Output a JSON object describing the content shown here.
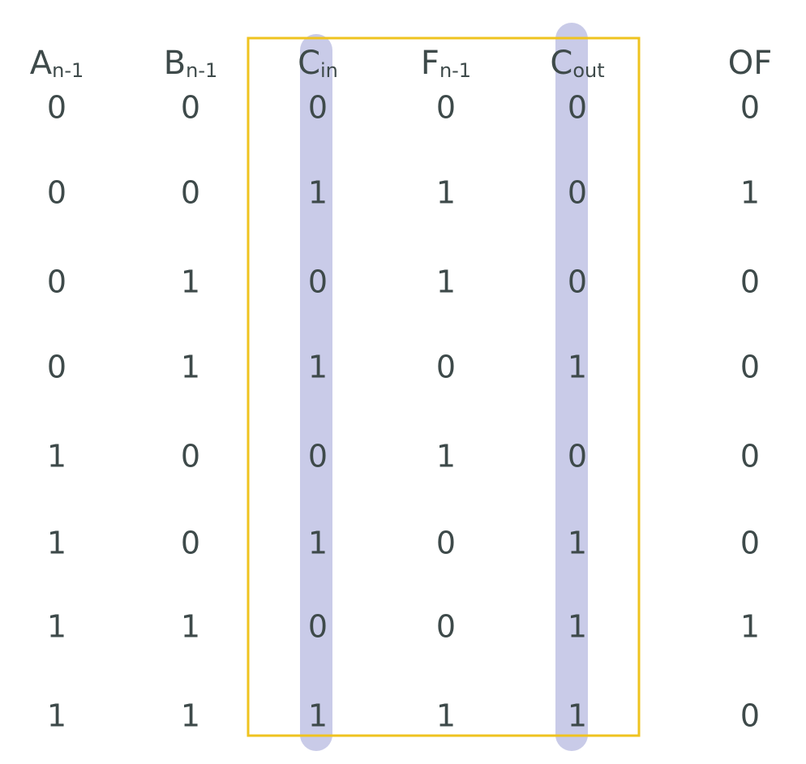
{
  "table": {
    "header": [
      {
        "main": "A",
        "sub": "n-1"
      },
      {
        "main": "B",
        "sub": "n-1"
      },
      {
        "main": "C",
        "sub": "in"
      },
      {
        "main": "F",
        "sub": "n-1"
      },
      {
        "main": "C",
        "sub": "out"
      },
      {
        "main": "OF"
      }
    ],
    "rows": [
      [
        0,
        0,
        0,
        0,
        0,
        0
      ],
      [
        0,
        0,
        1,
        1,
        0,
        1
      ],
      [
        0,
        1,
        0,
        1,
        0,
        0
      ],
      [
        0,
        1,
        1,
        0,
        1,
        0
      ],
      [
        1,
        0,
        0,
        1,
        0,
        0
      ],
      [
        1,
        0,
        1,
        0,
        1,
        0
      ],
      [
        1,
        1,
        0,
        0,
        1,
        1
      ],
      [
        1,
        1,
        1,
        1,
        1,
        0
      ]
    ]
  }
}
